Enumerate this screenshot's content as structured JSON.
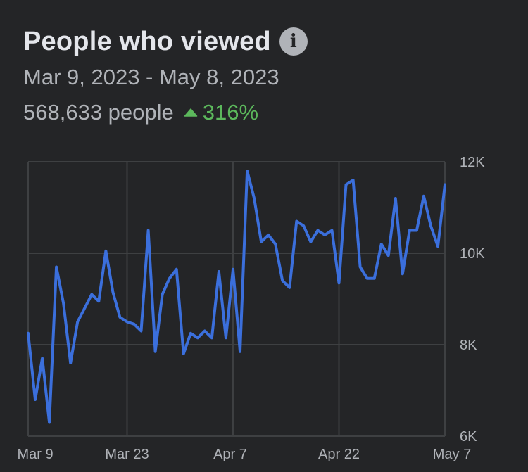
{
  "header": {
    "title": "People who viewed",
    "date_range": "Mar 9, 2023 - May 8, 2023",
    "people_count": "568,633 people",
    "change": "316%",
    "change_direction": "up"
  },
  "icons": {
    "info": "info-icon",
    "trend": "triangle-up-icon"
  },
  "colors": {
    "background": "#242527",
    "line": "#3b6fdc",
    "grid": "#3e4042",
    "positive": "#5cb85c",
    "text_secondary": "#b0b3b8"
  },
  "chart_data": {
    "type": "line",
    "title": "People who viewed",
    "x_start": "Mar 9",
    "x_tick_labels": [
      "Mar 9",
      "Mar 23",
      "Apr 7",
      "Apr 22",
      "May 7"
    ],
    "x_tick_indices": [
      0,
      14,
      29,
      44,
      59
    ],
    "y_tick_labels": [
      "12K",
      "10K",
      "8K",
      "6K"
    ],
    "y_ticks": [
      12000,
      10000,
      8000,
      6000
    ],
    "ylim": [
      6000,
      12000
    ],
    "grid": true,
    "y_axis_position": "right",
    "series": [
      {
        "values": [
          8250,
          6800,
          7700,
          6300,
          9700,
          8900,
          7600,
          8500,
          8800,
          9100,
          8950,
          10050,
          9150,
          8600,
          8500,
          8450,
          8300,
          10500,
          7850,
          9100,
          9450,
          9650,
          7800,
          8250,
          8150,
          8300,
          8150,
          9600,
          8150,
          9650,
          7850,
          11800,
          11200,
          10250,
          10400,
          10200,
          9400,
          9250,
          10700,
          10600,
          10250,
          10500,
          10400,
          10500,
          9350,
          11500,
          11600,
          9700,
          9450,
          9450,
          10200,
          9950,
          11200,
          9550,
          10500,
          10500,
          11250,
          10600,
          10150,
          11500
        ]
      }
    ]
  }
}
